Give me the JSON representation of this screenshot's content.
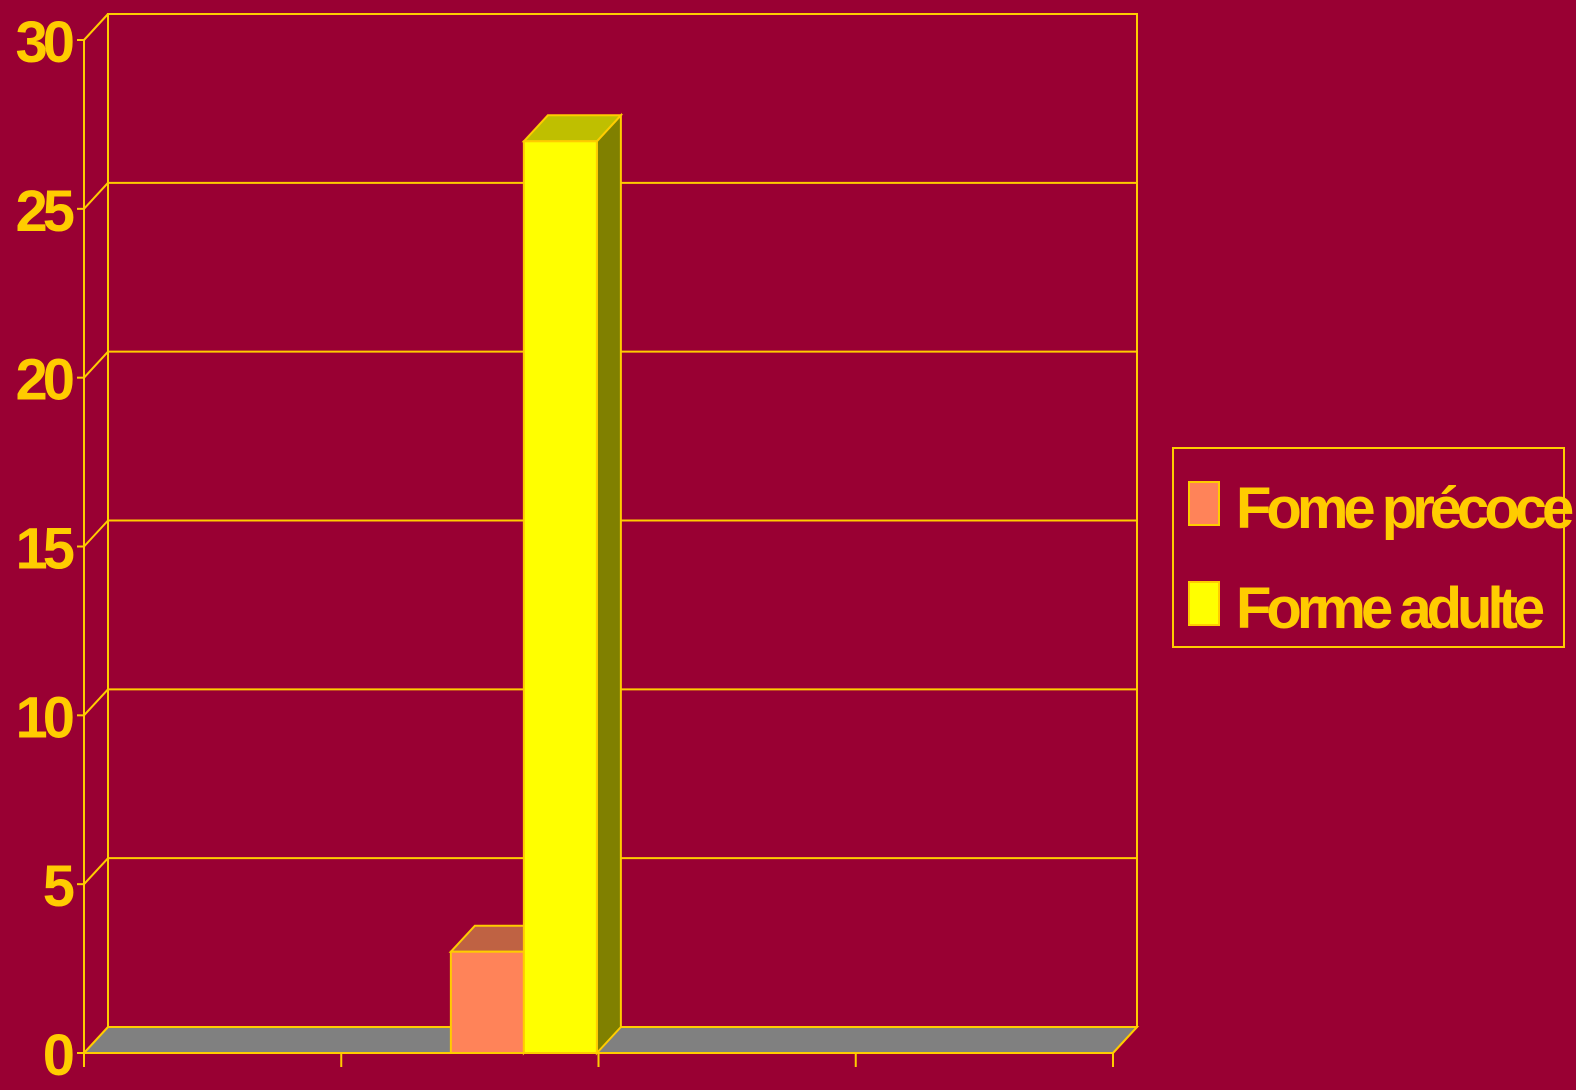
{
  "chart_data": {
    "type": "bar",
    "title": "",
    "xlabel": "",
    "ylabel": "",
    "ylim": [
      0,
      30
    ],
    "yticks": [
      "0",
      "5",
      "10",
      "15",
      "20",
      "25",
      "30"
    ],
    "categories": [
      "",
      "",
      "",
      ""
    ],
    "series": [
      {
        "name": "Fome précoce",
        "values": [
          null,
          3,
          null,
          null
        ],
        "color": "#FF8359"
      },
      {
        "name": "Forme adulte",
        "values": [
          null,
          27,
          null,
          null
        ],
        "color": "#FFFF00"
      }
    ],
    "grid": true,
    "legend": "right",
    "colors": {
      "background": "#990033",
      "axis": "#FFCC00",
      "text": "#FFCC00",
      "floor": "#808080"
    }
  }
}
